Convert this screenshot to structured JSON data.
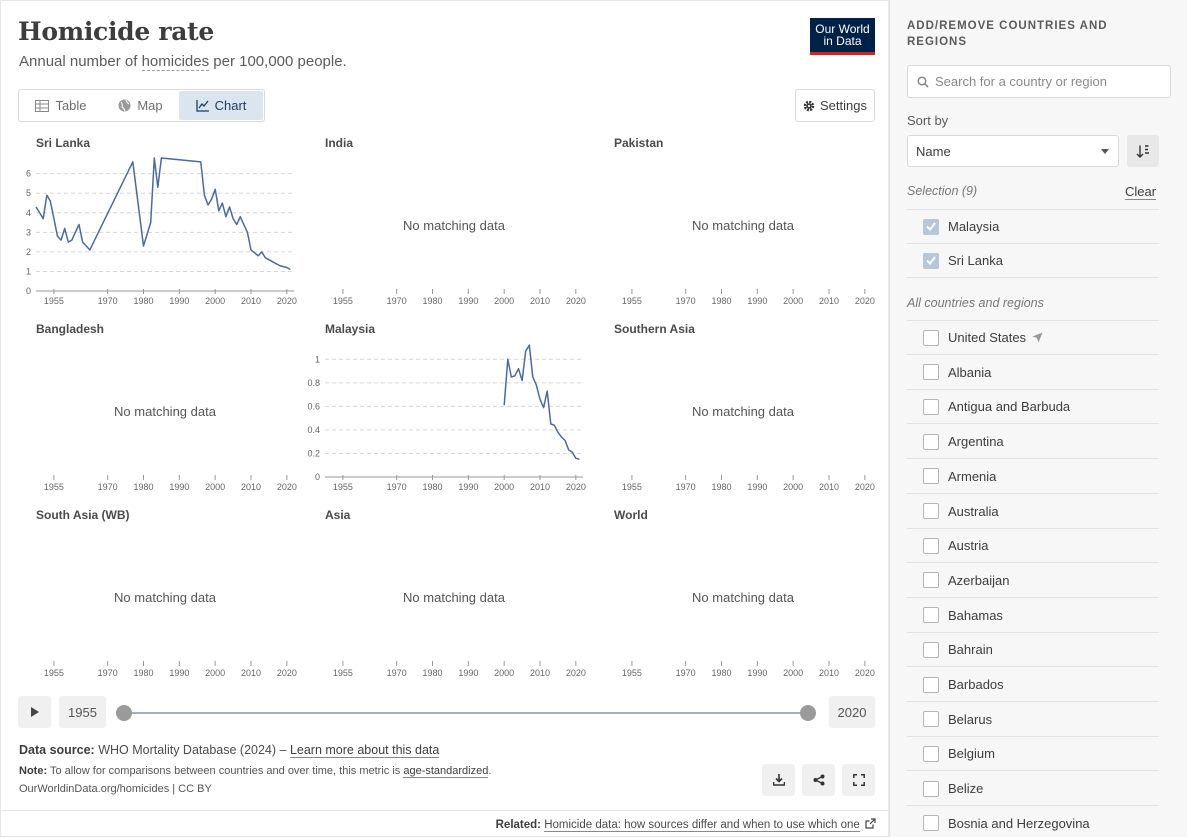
{
  "header": {
    "title": "Homicide rate",
    "subtitle_pre": "Annual number of ",
    "subtitle_link": "homicides",
    "subtitle_post": " per 100,000 people.",
    "logo_line1": "Our World",
    "logo_line2": "in Data"
  },
  "tabs": [
    {
      "label": "Table",
      "icon": "table-icon"
    },
    {
      "label": "Map",
      "icon": "globe-icon"
    },
    {
      "label": "Chart",
      "icon": "line-chart-icon",
      "active": true
    }
  ],
  "settings_label": "Settings",
  "no_data_text": "No matching data",
  "chart_data": [
    {
      "type": "line",
      "title": "Sri Lanka",
      "xlim": [
        1950,
        2022
      ],
      "ylim": [
        0,
        6.8
      ],
      "yticks": [
        0,
        1,
        2,
        3,
        4,
        5,
        6
      ],
      "xticks": [
        1955,
        1970,
        1980,
        1990,
        2000,
        2010,
        2020
      ],
      "x": [
        1950,
        1952,
        1953,
        1954,
        1955,
        1956,
        1957,
        1958,
        1959,
        1960,
        1962,
        1963,
        1965,
        1977,
        1980,
        1982,
        1983,
        1984,
        1985,
        1996,
        1997,
        1998,
        1999,
        2000,
        2001,
        2002,
        2003,
        2004,
        2005,
        2006,
        2007,
        2008,
        2009,
        2010,
        2012,
        2013,
        2014,
        2016,
        2018,
        2020,
        2021
      ],
      "y": [
        4.3,
        3.7,
        4.9,
        4.6,
        3.7,
        2.8,
        2.6,
        3.2,
        2.5,
        2.6,
        3.4,
        2.5,
        2.1,
        6.6,
        2.3,
        3.5,
        6.8,
        5.3,
        6.8,
        6.6,
        4.9,
        4.4,
        4.7,
        5.2,
        4.1,
        4.5,
        3.8,
        4.3,
        3.7,
        3.4,
        3.8,
        3.4,
        3.0,
        2.1,
        1.8,
        2.0,
        1.7,
        1.5,
        1.3,
        1.2,
        1.1
      ]
    },
    {
      "type": "line",
      "title": "India",
      "empty": true,
      "xticks": [
        1955,
        1970,
        1980,
        1990,
        2000,
        2010,
        2020
      ]
    },
    {
      "type": "line",
      "title": "Pakistan",
      "empty": true,
      "xticks": [
        1955,
        1970,
        1980,
        1990,
        2000,
        2010,
        2020
      ]
    },
    {
      "type": "line",
      "title": "Bangladesh",
      "empty": true,
      "xticks": [
        1955,
        1970,
        1980,
        1990,
        2000,
        2010,
        2020
      ]
    },
    {
      "type": "line",
      "title": "Malaysia",
      "xlim": [
        1950,
        2022
      ],
      "ylim": [
        0,
        1.13
      ],
      "yticks": [
        0,
        0.2,
        0.4,
        0.6,
        0.8,
        1
      ],
      "xticks": [
        1955,
        1970,
        1980,
        1990,
        2000,
        2010,
        2020
      ],
      "x": [
        2000,
        2001,
        2002,
        2003,
        2004,
        2005,
        2006,
        2007,
        2008,
        2009,
        2010,
        2011,
        2012,
        2013,
        2014,
        2015,
        2016,
        2017,
        2018,
        2019,
        2020,
        2021
      ],
      "y": [
        0.61,
        1.0,
        0.85,
        0.86,
        0.92,
        0.82,
        1.07,
        1.12,
        0.85,
        0.78,
        0.66,
        0.59,
        0.73,
        0.45,
        0.44,
        0.38,
        0.34,
        0.31,
        0.23,
        0.21,
        0.16,
        0.15
      ]
    },
    {
      "type": "line",
      "title": "Southern Asia",
      "empty": true,
      "xticks": [
        1955,
        1970,
        1980,
        1990,
        2000,
        2010,
        2020
      ]
    },
    {
      "type": "line",
      "title": "South Asia (WB)",
      "empty": true,
      "xticks": [
        1955,
        1970,
        1980,
        1990,
        2000,
        2010,
        2020
      ]
    },
    {
      "type": "line",
      "title": "Asia",
      "empty": true,
      "xticks": [
        1955,
        1970,
        1980,
        1990,
        2000,
        2010,
        2020
      ]
    },
    {
      "type": "line",
      "title": "World",
      "empty": true,
      "xticks": [
        1955,
        1970,
        1980,
        1990,
        2000,
        2010,
        2020
      ]
    }
  ],
  "timeline": {
    "start_year": "1955",
    "end_year": "2020",
    "start_fraction": 0,
    "end_fraction": 1
  },
  "footer": {
    "source_label": "Data source:",
    "source_text": " WHO Mortality Database (2024) – ",
    "source_link": "Learn more about this data",
    "note_label": "Note:",
    "note_text": " To allow for comparisons between countries and over time, this metric is ",
    "note_link": "age-standardized",
    "note_end": ".",
    "license": "OurWorldinData.org/homicides | CC BY",
    "related_label": "Related:",
    "related_link": "Homicide data: how sources differ and when to use which one"
  },
  "sidebar": {
    "heading": "ADD/REMOVE COUNTRIES AND REGIONS",
    "search_placeholder": "Search for a country or region",
    "sort_label": "Sort by",
    "sort_value": "Name",
    "selection_label": "Selection (9)",
    "clear_label": "Clear",
    "selected": [
      "Malaysia",
      "Sri Lanka"
    ],
    "all_label": "All countries and regions",
    "countries": [
      "United States",
      "Albania",
      "Antigua and Barbuda",
      "Argentina",
      "Armenia",
      "Australia",
      "Austria",
      "Azerbaijan",
      "Bahamas",
      "Bahrain",
      "Barbados",
      "Belarus",
      "Belgium",
      "Belize",
      "Bosnia and Herzegovina"
    ]
  },
  "colors": {
    "line": "#4c6a9c",
    "accent": "#1d3d63",
    "logo_bg": "#002147",
    "logo_bar": "#ce261e"
  }
}
